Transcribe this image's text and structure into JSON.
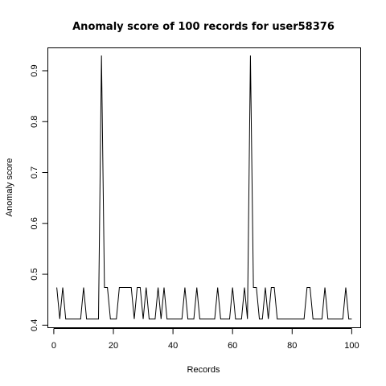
{
  "chart_data": {
    "type": "line",
    "title": "Anomaly score of 100 records for user58376",
    "xlabel": "Records",
    "ylabel": "Anomaly score",
    "xlim": [
      -2,
      103
    ],
    "ylim": [
      0.395,
      0.945
    ],
    "x_ticks": [
      0,
      20,
      40,
      60,
      80,
      100
    ],
    "x_tick_labels": [
      "0",
      "20",
      "40",
      "60",
      "80",
      "100"
    ],
    "y_ticks": [
      0.4,
      0.5,
      0.6,
      0.7,
      0.8,
      0.9
    ],
    "y_tick_labels": [
      "0.4",
      "0.5",
      "0.6",
      "0.7",
      "0.8",
      "0.9"
    ],
    "grid": false,
    "legend": "none",
    "series": [
      {
        "color": "#000000",
        "x": [
          1,
          2,
          3,
          4,
          5,
          6,
          7,
          8,
          9,
          10,
          11,
          12,
          13,
          14,
          15,
          16,
          17,
          18,
          19,
          20,
          21,
          22,
          23,
          24,
          25,
          26,
          27,
          28,
          29,
          30,
          31,
          32,
          33,
          34,
          35,
          36,
          37,
          38,
          39,
          40,
          41,
          42,
          43,
          44,
          45,
          46,
          47,
          48,
          49,
          50,
          51,
          52,
          53,
          54,
          55,
          56,
          57,
          58,
          59,
          60,
          61,
          62,
          63,
          64,
          65,
          66,
          67,
          68,
          69,
          70,
          71,
          72,
          73,
          74,
          75,
          76,
          77,
          78,
          79,
          80,
          81,
          82,
          83,
          84,
          85,
          86,
          87,
          88,
          89,
          90,
          91,
          92,
          93,
          94,
          95,
          96,
          97,
          98,
          99,
          100
        ],
        "y": [
          0.474,
          0.412,
          0.474,
          0.412,
          0.412,
          0.412,
          0.412,
          0.412,
          0.412,
          0.474,
          0.412,
          0.412,
          0.412,
          0.412,
          0.412,
          0.93,
          0.474,
          0.474,
          0.412,
          0.412,
          0.412,
          0.474,
          0.474,
          0.474,
          0.474,
          0.474,
          0.412,
          0.474,
          0.474,
          0.412,
          0.474,
          0.412,
          0.412,
          0.412,
          0.474,
          0.412,
          0.474,
          0.412,
          0.412,
          0.412,
          0.412,
          0.412,
          0.412,
          0.474,
          0.412,
          0.412,
          0.412,
          0.474,
          0.412,
          0.412,
          0.412,
          0.412,
          0.412,
          0.412,
          0.474,
          0.412,
          0.412,
          0.412,
          0.412,
          0.474,
          0.412,
          0.412,
          0.412,
          0.474,
          0.412,
          0.93,
          0.474,
          0.474,
          0.412,
          0.412,
          0.474,
          0.412,
          0.474,
          0.474,
          0.412,
          0.412,
          0.412,
          0.412,
          0.412,
          0.412,
          0.412,
          0.412,
          0.412,
          0.412,
          0.474,
          0.474,
          0.412,
          0.412,
          0.412,
          0.412,
          0.474,
          0.412,
          0.412,
          0.412,
          0.412,
          0.412,
          0.412,
          0.474,
          0.412,
          0.412
        ]
      }
    ]
  }
}
